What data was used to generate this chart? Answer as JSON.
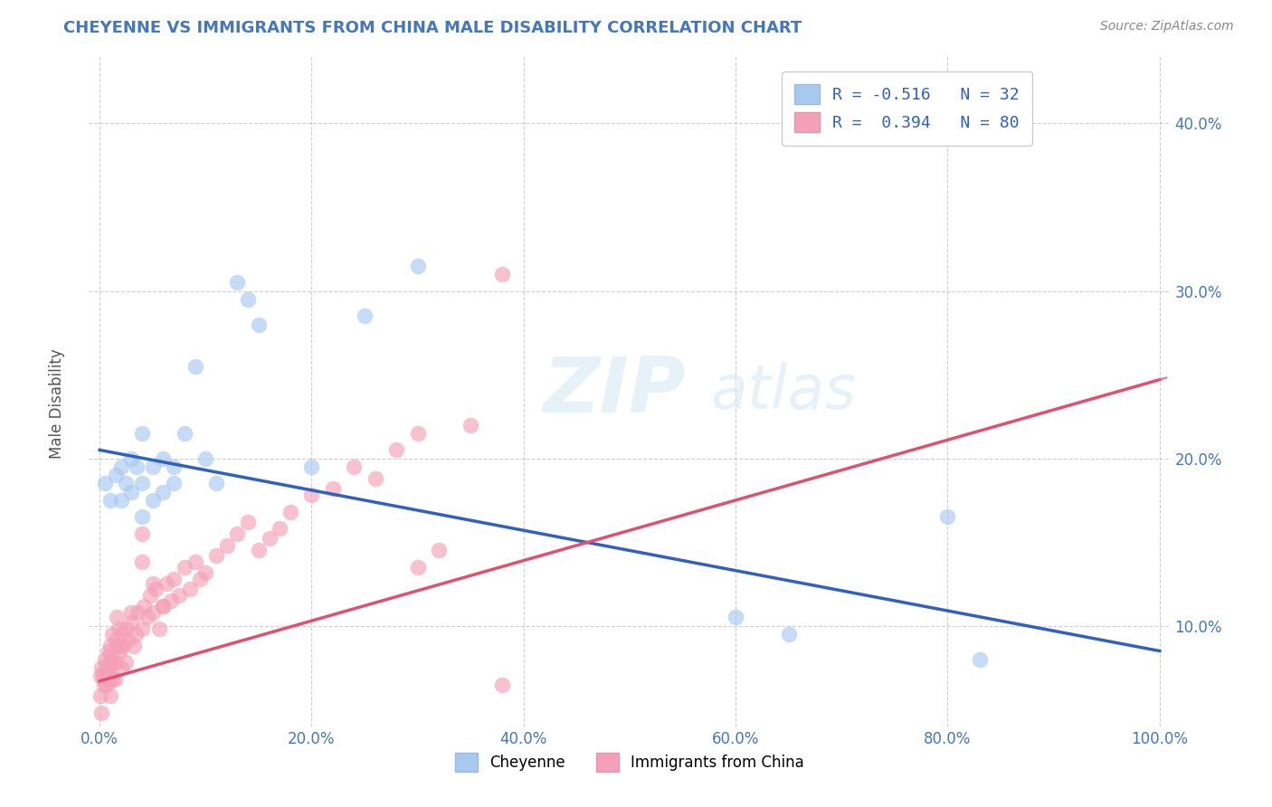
{
  "title": "CHEYENNE VS IMMIGRANTS FROM CHINA MALE DISABILITY CORRELATION CHART",
  "source": "Source: ZipAtlas.com",
  "xlabel": "",
  "ylabel": "Male Disability",
  "watermark_zip": "ZIP",
  "watermark_atlas": "atlas",
  "legend_labels": [
    "Cheyenne",
    "Immigrants from China"
  ],
  "cheyenne_R": -0.516,
  "cheyenne_N": 32,
  "immigrants_R": 0.394,
  "immigrants_N": 80,
  "cheyenne_color": "#A8C8F0",
  "immigrants_color": "#F4A0B8",
  "cheyenne_line_color": "#3060C0",
  "immigrants_line_color": "#E05070",
  "background_color": "#FFFFFF",
  "grid_color": "#BBBBBB",
  "xlim": [
    -0.01,
    1.01
  ],
  "ylim": [
    0.04,
    0.44
  ],
  "x_ticks": [
    0.0,
    0.2,
    0.4,
    0.6,
    0.8,
    1.0
  ],
  "x_tick_labels": [
    "0.0%",
    "20.0%",
    "40.0%",
    "60.0%",
    "80.0%",
    "100.0%"
  ],
  "y_ticks": [
    0.1,
    0.2,
    0.3,
    0.4
  ],
  "y_tick_labels": [
    "10.0%",
    "20.0%",
    "30.0%",
    "40.0%"
  ],
  "cheyenne_x": [
    0.005,
    0.01,
    0.015,
    0.02,
    0.02,
    0.025,
    0.03,
    0.03,
    0.035,
    0.04,
    0.04,
    0.04,
    0.05,
    0.05,
    0.06,
    0.06,
    0.07,
    0.07,
    0.08,
    0.09,
    0.1,
    0.11,
    0.13,
    0.14,
    0.15,
    0.2,
    0.25,
    0.3,
    0.6,
    0.65,
    0.8,
    0.83
  ],
  "cheyenne_y": [
    0.185,
    0.175,
    0.19,
    0.175,
    0.195,
    0.185,
    0.18,
    0.2,
    0.195,
    0.165,
    0.185,
    0.215,
    0.175,
    0.195,
    0.18,
    0.2,
    0.185,
    0.195,
    0.215,
    0.255,
    0.2,
    0.185,
    0.305,
    0.295,
    0.28,
    0.195,
    0.285,
    0.315,
    0.105,
    0.095,
    0.165,
    0.08
  ],
  "immigrants_x": [
    0.001,
    0.002,
    0.003,
    0.005,
    0.006,
    0.007,
    0.008,
    0.009,
    0.01,
    0.01,
    0.011,
    0.012,
    0.013,
    0.014,
    0.015,
    0.016,
    0.017,
    0.018,
    0.019,
    0.02,
    0.021,
    0.022,
    0.025,
    0.027,
    0.03,
    0.032,
    0.034,
    0.036,
    0.04,
    0.042,
    0.045,
    0.048,
    0.05,
    0.053,
    0.056,
    0.06,
    0.063,
    0.067,
    0.07,
    0.075,
    0.08,
    0.085,
    0.09,
    0.095,
    0.1,
    0.11,
    0.12,
    0.13,
    0.14,
    0.15,
    0.16,
    0.17,
    0.18,
    0.2,
    0.22,
    0.24,
    0.26,
    0.28,
    0.3,
    0.32,
    0.35,
    0.38,
    0.06,
    0.05,
    0.04,
    0.03,
    0.025,
    0.02,
    0.015,
    0.012,
    0.01,
    0.008,
    0.006,
    0.004,
    0.003,
    0.002,
    0.001,
    0.04,
    0.38,
    0.3
  ],
  "immigrants_y": [
    0.07,
    0.075,
    0.068,
    0.08,
    0.072,
    0.065,
    0.085,
    0.078,
    0.088,
    0.072,
    0.082,
    0.095,
    0.078,
    0.068,
    0.092,
    0.105,
    0.088,
    0.098,
    0.085,
    0.075,
    0.095,
    0.088,
    0.078,
    0.092,
    0.102,
    0.088,
    0.095,
    0.108,
    0.098,
    0.112,
    0.105,
    0.118,
    0.108,
    0.122,
    0.098,
    0.112,
    0.125,
    0.115,
    0.128,
    0.118,
    0.135,
    0.122,
    0.138,
    0.128,
    0.132,
    0.142,
    0.148,
    0.155,
    0.162,
    0.145,
    0.152,
    0.158,
    0.168,
    0.178,
    0.182,
    0.195,
    0.188,
    0.205,
    0.215,
    0.145,
    0.22,
    0.31,
    0.112,
    0.125,
    0.138,
    0.108,
    0.098,
    0.088,
    0.078,
    0.068,
    0.058,
    0.068,
    0.075,
    0.065,
    0.072,
    0.048,
    0.058,
    0.155,
    0.065,
    0.135
  ]
}
